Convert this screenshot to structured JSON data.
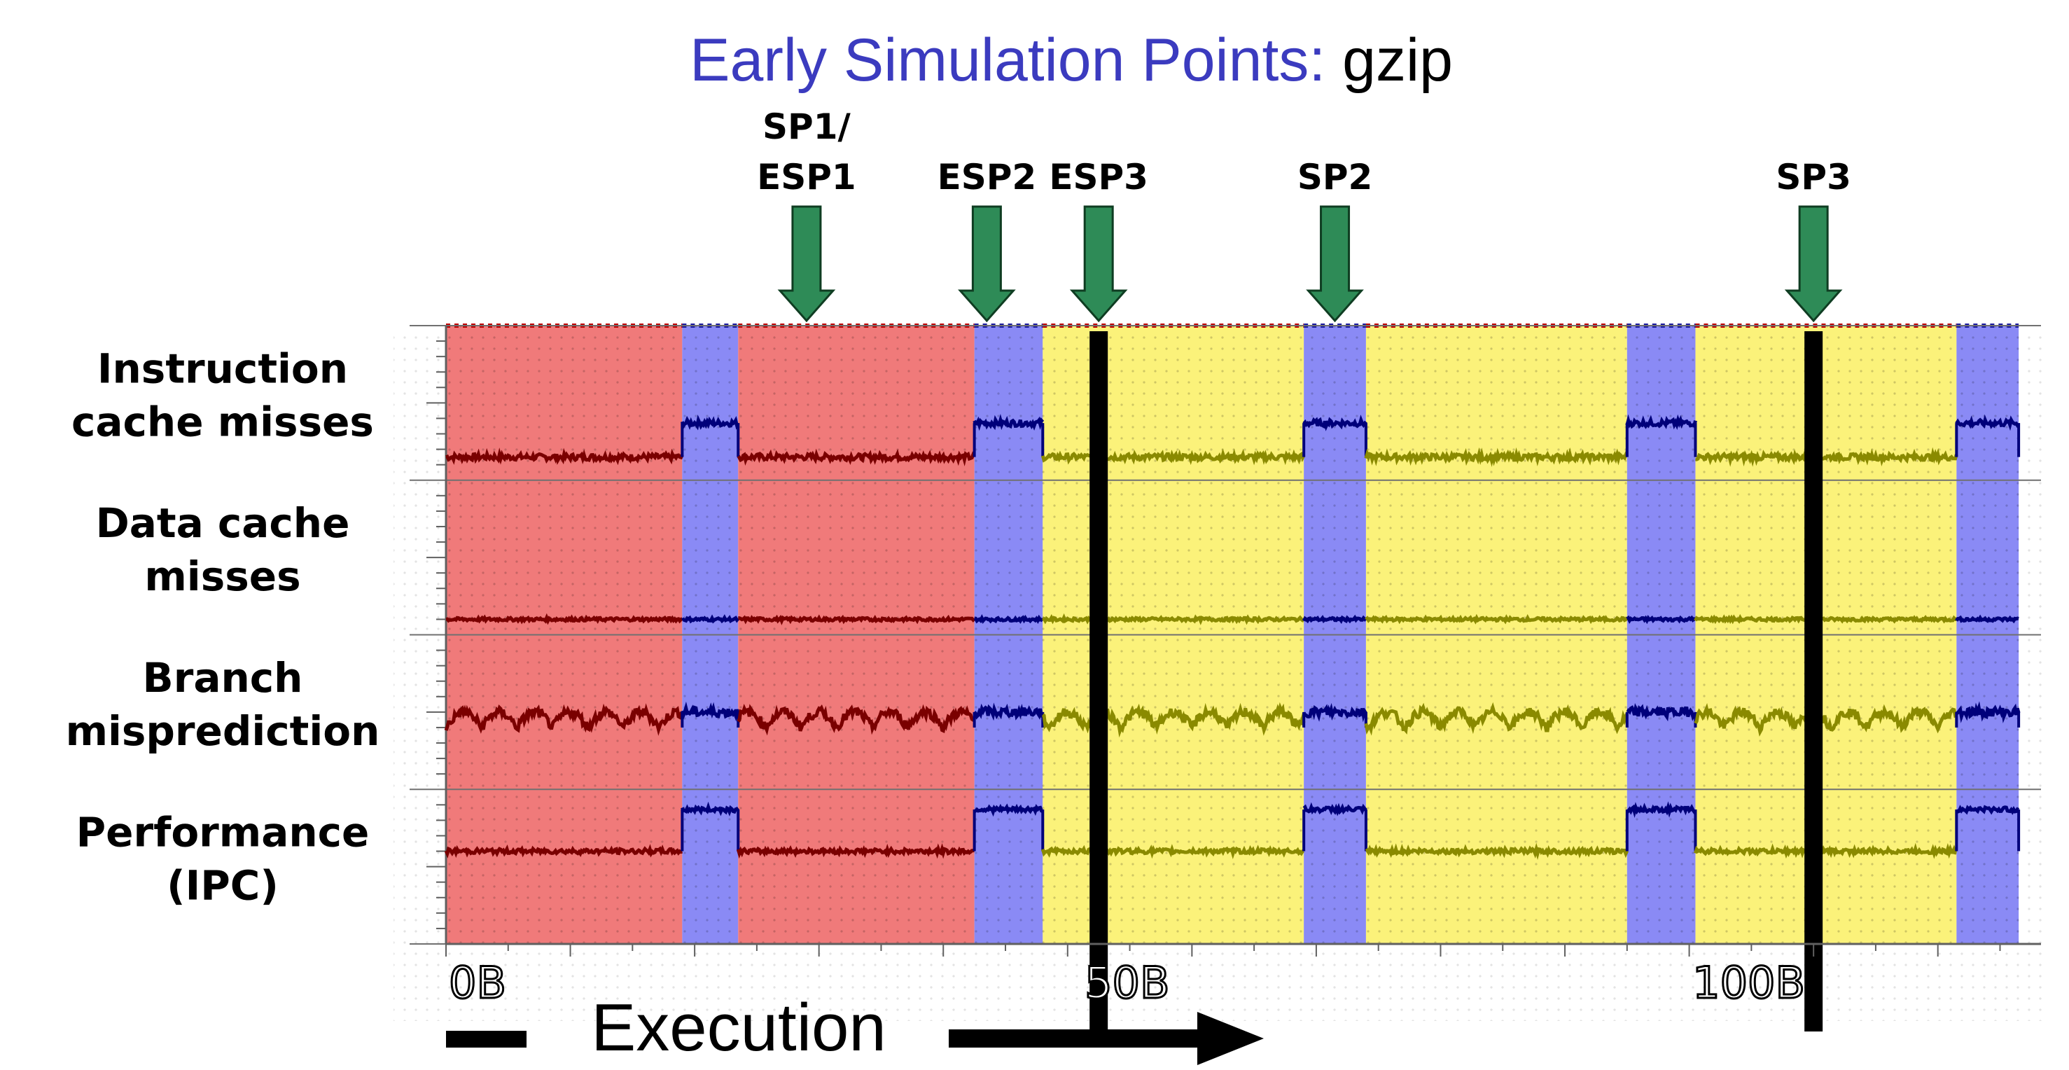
{
  "title": {
    "part1": "Early Simulation Points: ",
    "part2": "gzip",
    "color1": "#3b3bbf",
    "color2": "#000000"
  },
  "colors": {
    "red": "#f07a7a",
    "blue": "#8a8af5",
    "yellow": "#fbf27a",
    "arrow": "#2e8b57",
    "line_red": "#7a0000",
    "line_blue": "#00007a",
    "line_yellow": "#8a8a00"
  },
  "chart_data": {
    "type": "line",
    "x_range": [
      0,
      127
    ],
    "x_ticks": [
      {
        "value": 0,
        "label": "0B"
      },
      {
        "value": 50,
        "label": "50B"
      },
      {
        "value": 100,
        "label": "100B"
      }
    ],
    "x_axis_label": "Execution",
    "rows": [
      {
        "label_lines": [
          "Instruction",
          "cache misses"
        ],
        "base": 0.1,
        "high": 0.32,
        "noise": 0.02,
        "osc": 0.0
      },
      {
        "label_lines": [
          "Data  cache",
          "misses"
        ],
        "base": 0.05,
        "high": 0.05,
        "noise": 0.01,
        "osc": 0.0
      },
      {
        "label_lines": [
          "Branch",
          "misprediction"
        ],
        "base": 0.35,
        "high": 0.45,
        "noise": 0.03,
        "osc": 0.1
      },
      {
        "label_lines": [
          "Performance",
          "(IPC)"
        ],
        "base": 0.55,
        "high": 0.82,
        "noise": 0.015,
        "osc": 0.0
      }
    ],
    "phases": [
      {
        "start": 0,
        "end": 19,
        "type": "red"
      },
      {
        "start": 19,
        "end": 23.5,
        "type": "blue"
      },
      {
        "start": 23.5,
        "end": 42.5,
        "type": "red"
      },
      {
        "start": 42.5,
        "end": 48,
        "type": "blue"
      },
      {
        "start": 48,
        "end": 69,
        "type": "yellow"
      },
      {
        "start": 69,
        "end": 74,
        "type": "blue"
      },
      {
        "start": 74,
        "end": 95,
        "type": "yellow"
      },
      {
        "start": 95,
        "end": 100.5,
        "type": "blue"
      },
      {
        "start": 100.5,
        "end": 121.5,
        "type": "yellow"
      },
      {
        "start": 121.5,
        "end": 126.5,
        "type": "blue"
      }
    ],
    "markers": [
      {
        "label_lines": [
          "SP1/",
          "ESP1"
        ],
        "x": 29,
        "line": false
      },
      {
        "label_lines": [
          "ESP2"
        ],
        "x": 43.5,
        "line": false
      },
      {
        "label_lines": [
          "ESP3"
        ],
        "x": 52.5,
        "line": true
      },
      {
        "label_lines": [
          "SP2"
        ],
        "x": 71.5,
        "line": false
      },
      {
        "label_lines": [
          "SP3"
        ],
        "x": 110,
        "line": true
      }
    ]
  }
}
